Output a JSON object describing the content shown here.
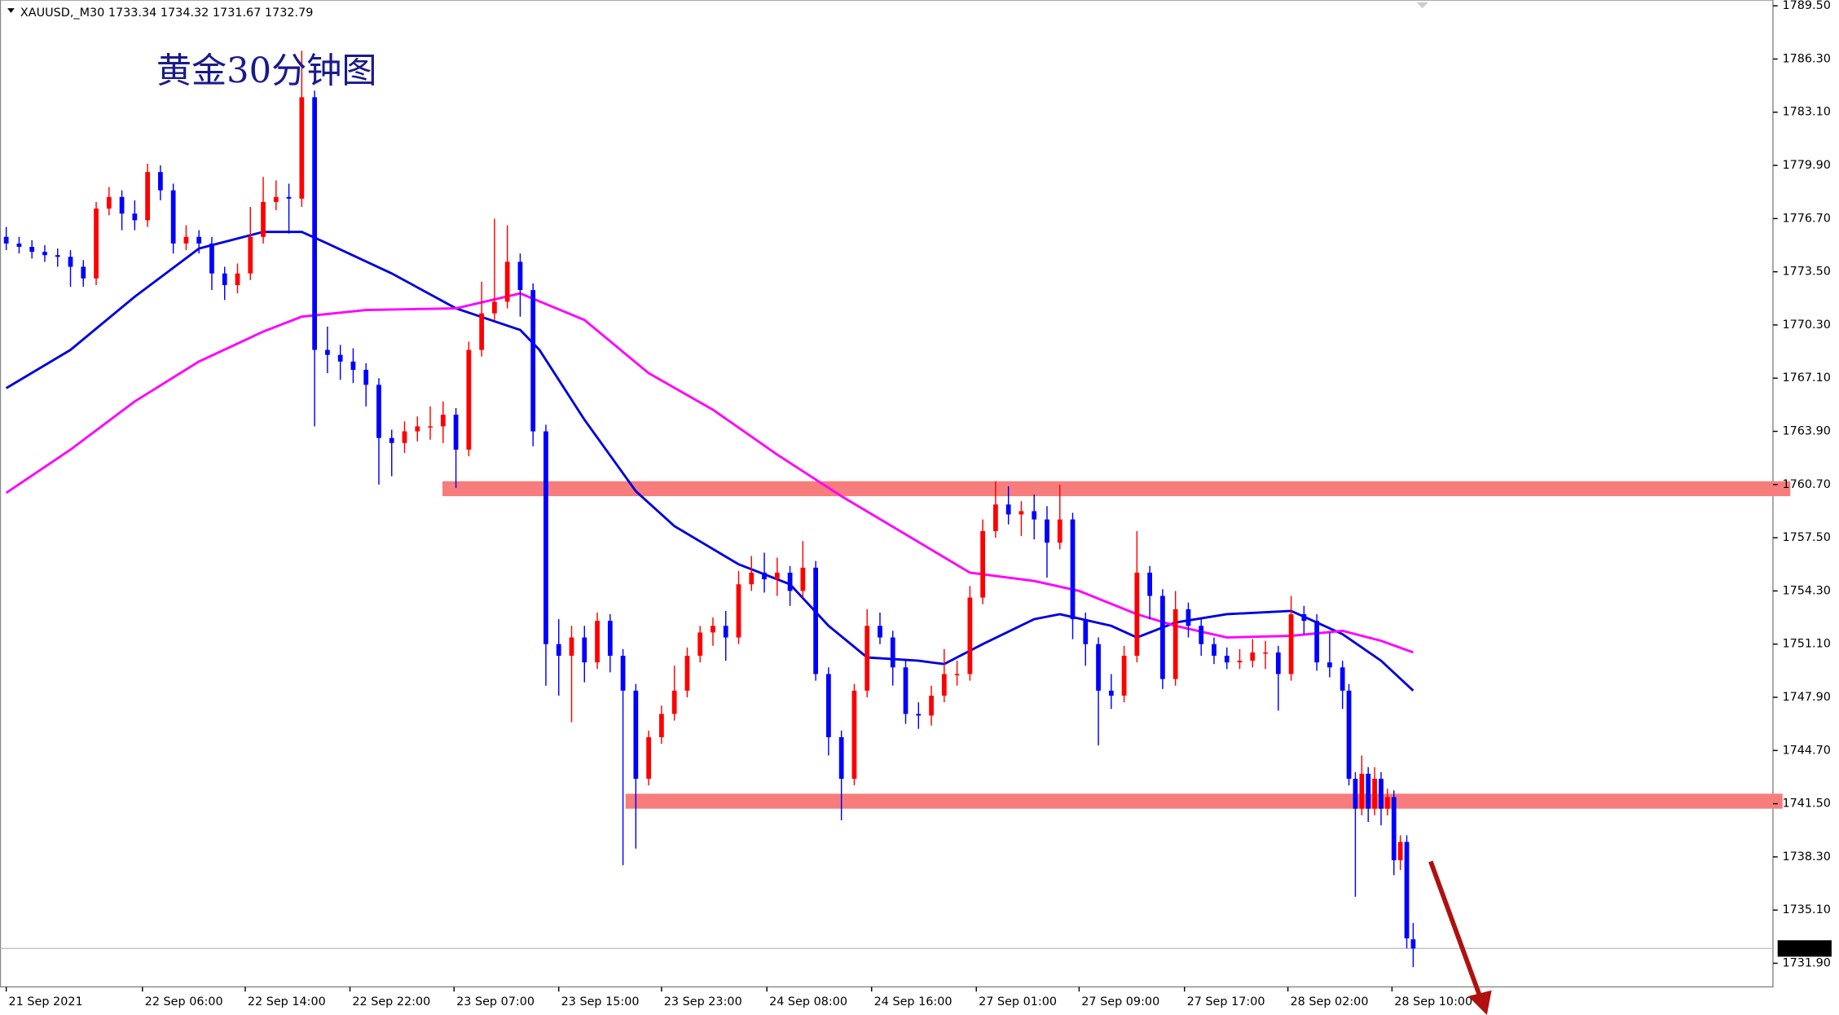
{
  "chart_data": {
    "type": "candlestick",
    "header": "XAUUSD,_M30 1733.34 1734.32 1731.67 1732.79",
    "annotation": "黄金30分钟图",
    "up_color": "#ff0000",
    "down_color": "#0000ff",
    "x": [
      0,
      2,
      4,
      6,
      8,
      10,
      12,
      14,
      16,
      18,
      20,
      22,
      24,
      26,
      28,
      30,
      32,
      34,
      36,
      38,
      40,
      42,
      44,
      46,
      48,
      50,
      52,
      54,
      56,
      58,
      60,
      62,
      64,
      66,
      68,
      70,
      72,
      74,
      76,
      78,
      80,
      82,
      84,
      86,
      88,
      90,
      92,
      94,
      96,
      98,
      100,
      102,
      104,
      106,
      108,
      110,
      112,
      114,
      116,
      118,
      120,
      122,
      124,
      126,
      128,
      130,
      132,
      134,
      136,
      138,
      140,
      142,
      144,
      146,
      148,
      150,
      152,
      154,
      156,
      158,
      160,
      162,
      164,
      166,
      168,
      170,
      172,
      174,
      176,
      178,
      180,
      182,
      184,
      186,
      188,
      190,
      192,
      194,
      196,
      198,
      200,
      202,
      204,
      206,
      208,
      209,
      210,
      211,
      212,
      213,
      214,
      215,
      216,
      217,
      218,
      219
    ],
    "open": [
      1775.6,
      1775.2,
      1775.0,
      1774.7,
      1774.5,
      1774.4,
      1773.8,
      1773.1,
      1777.3,
      1778.0,
      1777.0,
      1776.6,
      1779.5,
      1778.4,
      1775.2,
      1775.6,
      1775.2,
      1773.4,
      1772.7,
      1773.4,
      1775.6,
      1777.7,
      1778.0,
      1777.9,
      1784.0,
      1768.8,
      1768.5,
      1768.1,
      1767.6,
      1766.7,
      1763.5,
      1763.2,
      1763.9,
      1764.2,
      1764.2,
      1764.9,
      1762.8,
      1768.8,
      1771.0,
      1771.7,
      1774.1,
      1772.4,
      1763.9,
      1751.1,
      1750.4,
      1751.5,
      1750.0,
      1752.5,
      1750.4,
      1748.3,
      1743.0,
      1745.5,
      1746.9,
      1748.3,
      1750.4,
      1751.8,
      1752.2,
      1751.5,
      1754.7,
      1755.4,
      1755.0,
      1755.4,
      1754.3,
      1755.7,
      1749.3,
      1745.5,
      1743.0,
      1748.3,
      1752.2,
      1751.5,
      1749.7,
      1746.9,
      1746.8,
      1748.0,
      1749.3,
      1749.3,
      1753.9,
      1757.9,
      1759.5,
      1758.9,
      1759.1,
      1758.6,
      1757.2,
      1758.6,
      1752.6,
      1751.1,
      1748.3,
      1748.0,
      1750.4,
      1755.4,
      1754.0,
      1749.0,
      1753.2,
      1752.2,
      1751.1,
      1750.4,
      1750.0,
      1750.1,
      1750.6,
      1750.6,
      1749.3,
      1752.9,
      1752.5,
      1750.0,
      1749.7,
      1748.3,
      1743.0,
      1741.2,
      1743.3,
      1741.2,
      1743.0,
      1741.2,
      1741.9,
      1738.1,
      1739.2,
      1733.34
    ],
    "high": [
      1776.2,
      1775.6,
      1775.4,
      1775.1,
      1774.9,
      1774.8,
      1774.2,
      1777.7,
      1778.6,
      1778.4,
      1777.8,
      1780.0,
      1779.9,
      1778.8,
      1776.3,
      1776.0,
      1775.6,
      1773.8,
      1774.0,
      1777.4,
      1779.2,
      1779.0,
      1778.8,
      1786.8,
      1784.4,
      1770.2,
      1769.1,
      1768.9,
      1768.0,
      1767.1,
      1764.0,
      1764.5,
      1764.8,
      1765.4,
      1765.7,
      1765.3,
      1769.3,
      1772.9,
      1776.7,
      1776.3,
      1774.6,
      1772.8,
      1764.3,
      1752.6,
      1752.2,
      1752.2,
      1753.0,
      1752.9,
      1750.8,
      1748.7,
      1745.9,
      1747.4,
      1749.8,
      1750.9,
      1752.2,
      1752.7,
      1753.1,
      1755.5,
      1756.4,
      1756.6,
      1756.3,
      1755.8,
      1757.3,
      1756.1,
      1749.7,
      1745.9,
      1748.7,
      1753.2,
      1753.0,
      1751.9,
      1750.1,
      1747.6,
      1748.6,
      1750.8,
      1750.1,
      1754.6,
      1758.6,
      1760.9,
      1760.6,
      1759.7,
      1760.1,
      1759.4,
      1760.7,
      1759.0,
      1753.0,
      1751.5,
      1749.3,
      1751.0,
      1757.9,
      1755.8,
      1754.4,
      1754.3,
      1753.6,
      1752.6,
      1751.5,
      1750.9,
      1750.8,
      1751.4,
      1751.3,
      1751.0,
      1754.0,
      1753.4,
      1752.9,
      1751.8,
      1750.1,
      1748.7,
      1743.4,
      1744.4,
      1743.7,
      1743.7,
      1743.4,
      1742.4,
      1742.3,
      1739.6,
      1739.6,
      1734.32
    ],
    "low": [
      1774.8,
      1774.6,
      1774.3,
      1774.1,
      1773.8,
      1772.6,
      1772.6,
      1772.7,
      1776.9,
      1776.0,
      1776.0,
      1776.2,
      1777.8,
      1774.6,
      1774.8,
      1774.6,
      1772.4,
      1771.8,
      1772.2,
      1773.0,
      1775.2,
      1777.2,
      1775.8,
      1777.4,
      1764.2,
      1767.4,
      1767.0,
      1766.8,
      1765.4,
      1760.7,
      1761.2,
      1762.6,
      1763.3,
      1763.4,
      1763.2,
      1760.5,
      1762.4,
      1768.4,
      1770.6,
      1771.3,
      1770.8,
      1763.0,
      1748.6,
      1748.0,
      1746.4,
      1748.8,
      1749.6,
      1749.4,
      1737.8,
      1738.8,
      1742.6,
      1745.1,
      1746.5,
      1747.9,
      1750.0,
      1751.0,
      1750.1,
      1751.1,
      1754.3,
      1754.2,
      1754.0,
      1753.4,
      1753.9,
      1748.9,
      1744.4,
      1740.5,
      1742.6,
      1747.9,
      1751.1,
      1748.6,
      1746.3,
      1746.0,
      1746.2,
      1747.6,
      1748.6,
      1748.9,
      1753.5,
      1757.5,
      1758.3,
      1757.6,
      1757.4,
      1755.1,
      1756.8,
      1751.4,
      1749.8,
      1745.0,
      1747.2,
      1747.6,
      1750.0,
      1752.6,
      1748.4,
      1748.6,
      1751.5,
      1750.4,
      1749.9,
      1749.6,
      1749.6,
      1749.7,
      1749.6,
      1747.1,
      1748.9,
      1751.7,
      1749.5,
      1749.1,
      1747.2,
      1742.6,
      1735.9,
      1740.8,
      1740.4,
      1740.8,
      1740.2,
      1740.8,
      1737.2,
      1737.5,
      1732.8,
      1731.67
    ],
    "close": [
      1775.2,
      1775.0,
      1774.7,
      1774.5,
      1774.4,
      1773.8,
      1773.1,
      1777.3,
      1778.0,
      1777.0,
      1776.6,
      1779.5,
      1778.4,
      1775.2,
      1775.6,
      1775.2,
      1773.4,
      1772.7,
      1773.4,
      1775.6,
      1777.7,
      1778.0,
      1777.9,
      1784.0,
      1768.8,
      1768.5,
      1768.1,
      1767.6,
      1766.7,
      1763.5,
      1763.2,
      1763.9,
      1764.2,
      1764.2,
      1764.9,
      1762.8,
      1768.8,
      1771.0,
      1771.7,
      1774.1,
      1772.4,
      1763.9,
      1751.1,
      1750.4,
      1751.5,
      1750.0,
      1752.5,
      1750.4,
      1748.3,
      1743.0,
      1745.5,
      1746.9,
      1748.3,
      1750.4,
      1751.8,
      1752.2,
      1751.5,
      1754.7,
      1755.4,
      1755.0,
      1755.4,
      1754.3,
      1755.7,
      1749.3,
      1745.5,
      1743.0,
      1748.3,
      1752.2,
      1751.5,
      1749.7,
      1746.9,
      1746.8,
      1748.0,
      1749.3,
      1749.3,
      1753.9,
      1757.9,
      1759.5,
      1758.9,
      1759.1,
      1758.6,
      1757.2,
      1758.6,
      1752.6,
      1751.1,
      1748.3,
      1748.0,
      1750.4,
      1755.4,
      1754.0,
      1749.0,
      1753.2,
      1752.2,
      1751.1,
      1750.4,
      1750.0,
      1750.1,
      1750.6,
      1750.6,
      1749.3,
      1752.9,
      1752.5,
      1750.0,
      1749.7,
      1748.3,
      1743.0,
      1741.2,
      1743.3,
      1741.2,
      1743.0,
      1741.2,
      1741.9,
      1738.1,
      1739.2,
      1733.4,
      1732.79
    ],
    "lines": [
      {
        "color": "#0000dd",
        "x": [
          0,
          10,
          20,
          30,
          40,
          46,
          50,
          60,
          70,
          80,
          83,
          90,
          98,
          104,
          114,
          122,
          128,
          134,
          142,
          146,
          152,
          160,
          164,
          172,
          176,
          182,
          190,
          200,
          208,
          214,
          219
        ],
        "values": [
          1766.5,
          1768.8,
          1772.0,
          1774.9,
          1775.9,
          1775.9,
          1775.2,
          1773.4,
          1771.3,
          1770.0,
          1768.8,
          1764.6,
          1760.3,
          1758.2,
          1755.9,
          1754.7,
          1752.2,
          1750.3,
          1750.1,
          1749.9,
          1751.1,
          1752.6,
          1752.9,
          1752.2,
          1751.5,
          1752.4,
          1752.9,
          1753.1,
          1751.7,
          1750.1,
          1748.3
        ]
      },
      {
        "color": "#ff00ff",
        "x": [
          0,
          10,
          20,
          30,
          40,
          46,
          56,
          70,
          80,
          90,
          100,
          110,
          120,
          130,
          140,
          150,
          160,
          167,
          176,
          182,
          190,
          200,
          208,
          214,
          219
        ],
        "values": [
          1760.2,
          1762.8,
          1765.7,
          1768.1,
          1769.9,
          1770.8,
          1771.2,
          1771.3,
          1772.2,
          1770.6,
          1767.4,
          1765.2,
          1762.5,
          1760.0,
          1757.7,
          1755.4,
          1754.9,
          1754.3,
          1752.9,
          1752.2,
          1751.5,
          1751.6,
          1751.9,
          1751.3,
          1750.6
        ]
      }
    ],
    "zones": [
      {
        "color": "#f77c7c",
        "from": 67.9,
        "to": 277.7,
        "low": 1760.0,
        "high": 1760.9
      },
      {
        "color": "#f77c7c",
        "from": 96.4,
        "to": 276.5,
        "low": 1741.2,
        "high": 1742.1
      }
    ],
    "last_price": 1732.79,
    "xlim": [
      -0.91,
      275
    ],
    "ylim": [
      1730.48,
      1789.85
    ],
    "yticks": [
      {
        "value": 1789.5,
        "label": "1789.50"
      },
      {
        "value": 1786.3,
        "label": "1786.30"
      },
      {
        "value": 1783.1,
        "label": "1783.10"
      },
      {
        "value": 1779.9,
        "label": "1779.90"
      },
      {
        "value": 1776.7,
        "label": "1776.70"
      },
      {
        "value": 1773.5,
        "label": "1773.50"
      },
      {
        "value": 1770.3,
        "label": "1770.30"
      },
      {
        "value": 1767.1,
        "label": "1767.10"
      },
      {
        "value": 1763.9,
        "label": "1763.90"
      },
      {
        "value": 1760.7,
        "label": "1760.70"
      },
      {
        "value": 1757.5,
        "label": "1757.50"
      },
      {
        "value": 1754.3,
        "label": "1754.30"
      },
      {
        "value": 1751.1,
        "label": "1751.10"
      },
      {
        "value": 1747.9,
        "label": "1747.90"
      },
      {
        "value": 1744.7,
        "label": "1744.70"
      },
      {
        "value": 1741.5,
        "label": "1741.50"
      },
      {
        "value": 1738.3,
        "label": "1738.30"
      },
      {
        "value": 1735.1,
        "label": "1735.10"
      },
      {
        "value": 1731.9,
        "label": "1731.90"
      }
    ],
    "xticks": [
      {
        "value": 0,
        "label": "21 Sep 2021"
      },
      {
        "value": 21.2,
        "label": "22 Sep 06:00"
      },
      {
        "value": 37.2,
        "label": "22 Sep 14:00"
      },
      {
        "value": 53.5,
        "label": "22 Sep 22:00"
      },
      {
        "value": 69.7,
        "label": "23 Sep 07:00"
      },
      {
        "value": 86,
        "label": "23 Sep 15:00"
      },
      {
        "value": 102,
        "label": "23 Sep 23:00"
      },
      {
        "value": 118.4,
        "label": "24 Sep 08:00"
      },
      {
        "value": 134.7,
        "label": "24 Sep 16:00"
      },
      {
        "value": 151,
        "label": "27 Sep 01:00"
      },
      {
        "value": 167,
        "label": "27 Sep 09:00"
      },
      {
        "value": 183.4,
        "label": "27 Sep 17:00"
      },
      {
        "value": 199.5,
        "label": "28 Sep 02:00"
      },
      {
        "value": 215.7,
        "label": "28 Sep 10:00"
      }
    ]
  }
}
